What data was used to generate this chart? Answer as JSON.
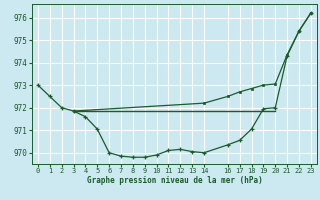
{
  "bg_color": "#cce8f0",
  "grid_color": "#ffffff",
  "line_color": "#1a5c2a",
  "xlim": [
    -0.5,
    23.5
  ],
  "ylim": [
    969.5,
    976.6
  ],
  "yticks": [
    970,
    971,
    972,
    973,
    974,
    975,
    976
  ],
  "xticks": [
    0,
    1,
    2,
    3,
    4,
    5,
    6,
    7,
    8,
    9,
    10,
    11,
    12,
    13,
    14,
    16,
    17,
    18,
    19,
    20,
    21,
    22,
    23
  ],
  "xlabel": "Graphe pression niveau de la mer (hPa)",
  "curve1_x": [
    0,
    1,
    2,
    3,
    4,
    5,
    6,
    7,
    8,
    9,
    10,
    11,
    12,
    13,
    14,
    16,
    17,
    18,
    19,
    20,
    21,
    22,
    23
  ],
  "curve1_y": [
    973.0,
    972.5,
    972.0,
    971.85,
    971.6,
    971.05,
    970.0,
    969.85,
    969.8,
    969.8,
    969.9,
    970.1,
    970.15,
    970.05,
    970.0,
    970.35,
    970.55,
    971.05,
    971.95,
    972.0,
    974.3,
    975.4,
    976.2
  ],
  "curve2_x": [
    3,
    20
  ],
  "curve2_y": [
    971.85,
    971.85
  ],
  "curve3_x": [
    3,
    14,
    16,
    17,
    18,
    19,
    20,
    21,
    22,
    23
  ],
  "curve3_y": [
    971.85,
    972.2,
    972.5,
    972.7,
    972.85,
    973.0,
    973.05,
    974.35,
    975.4,
    976.2
  ]
}
